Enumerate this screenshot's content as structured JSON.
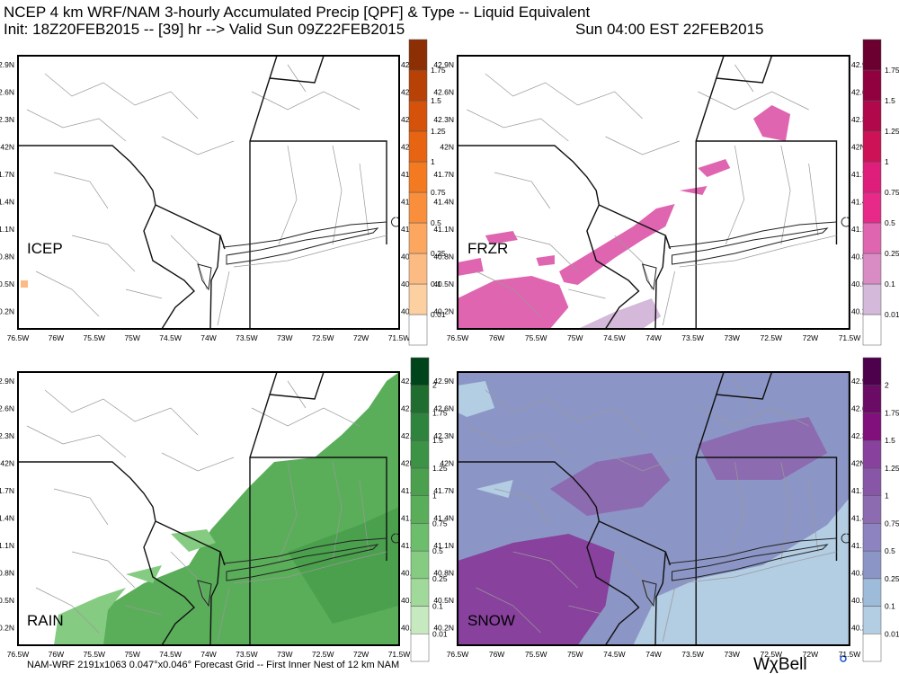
{
  "header": {
    "line1": "NCEP 4 km WRF/NAM 3-hourly Accumulated Precip [QPF] & Type -- Liquid Equivalent",
    "line2_left": "Init: 18Z20FEB2015 -- [39] hr --> Valid Sun 09Z22FEB2015",
    "line2_right": "Sun 04:00 EST 22FEB2015"
  },
  "lon_labels": [
    "76.5W",
    "76W",
    "75.5W",
    "75W",
    "74.5W",
    "74W",
    "73.5W",
    "73W",
    "72.5W",
    "72W",
    "71.5W"
  ],
  "lat_labels": [
    "42.9N",
    "42.6N",
    "42.3N",
    "42N",
    "41.7N",
    "41.4N",
    "41.1N",
    "40.8N",
    "40.5N",
    "40.2N"
  ],
  "panels": [
    {
      "label": "ICEP",
      "colorbar": {
        "labels": [
          "0.01",
          "0.1",
          "0.25",
          "0.5",
          "0.75",
          "1",
          "1.25",
          "1.5",
          "1.75"
        ],
        "colors": [
          "#ffffff",
          "#fdd0a2",
          "#fdbb84",
          "#fca65f",
          "#f98f3c",
          "#f47a22",
          "#e76412",
          "#d4520a",
          "#b84206",
          "#8c2f04"
        ]
      }
    },
    {
      "label": "FRZR",
      "colorbar": {
        "labels": [
          "0.01",
          "0.1",
          "0.25",
          "0.5",
          "0.75",
          "1",
          "1.25",
          "1.5",
          "1.75"
        ],
        "colors": [
          "#ffffff",
          "#d4b9da",
          "#d98cc4",
          "#df65b0",
          "#e7298a",
          "#df1d7a",
          "#ce1256",
          "#b0084a",
          "#91003f",
          "#6b0030"
        ]
      }
    },
    {
      "label": "RAIN",
      "colorbar": {
        "labels": [
          "0.01",
          "0.1",
          "0.25",
          "0.5",
          "0.75",
          "1",
          "1.25",
          "1.5",
          "1.75",
          "2"
        ],
        "colors": [
          "#ffffff",
          "#c7e9c0",
          "#a1d99b",
          "#85cb81",
          "#6cbd6c",
          "#5aae5a",
          "#4aa04d",
          "#3c9245",
          "#2f843d",
          "#1f6e30",
          "#00441b"
        ]
      }
    },
    {
      "label": "SNOW",
      "colorbar": {
        "labels": [
          "0.01",
          "0.1",
          "0.25",
          "0.5",
          "0.75",
          "1",
          "1.25",
          "1.5",
          "1.75",
          "2"
        ],
        "colors": [
          "#ffffff",
          "#b3cde3",
          "#9ebcda",
          "#8c96c6",
          "#8c83c0",
          "#8c6bb1",
          "#8856a7",
          "#88419d",
          "#810f7c",
          "#6a0c66",
          "#4d004b"
        ]
      }
    }
  ],
  "footer": "NAM-WRF 2191x1063 0.047°x0.046° Forecast Grid -- First Inner Nest of 12 km NAM",
  "logo": "WχBell"
}
